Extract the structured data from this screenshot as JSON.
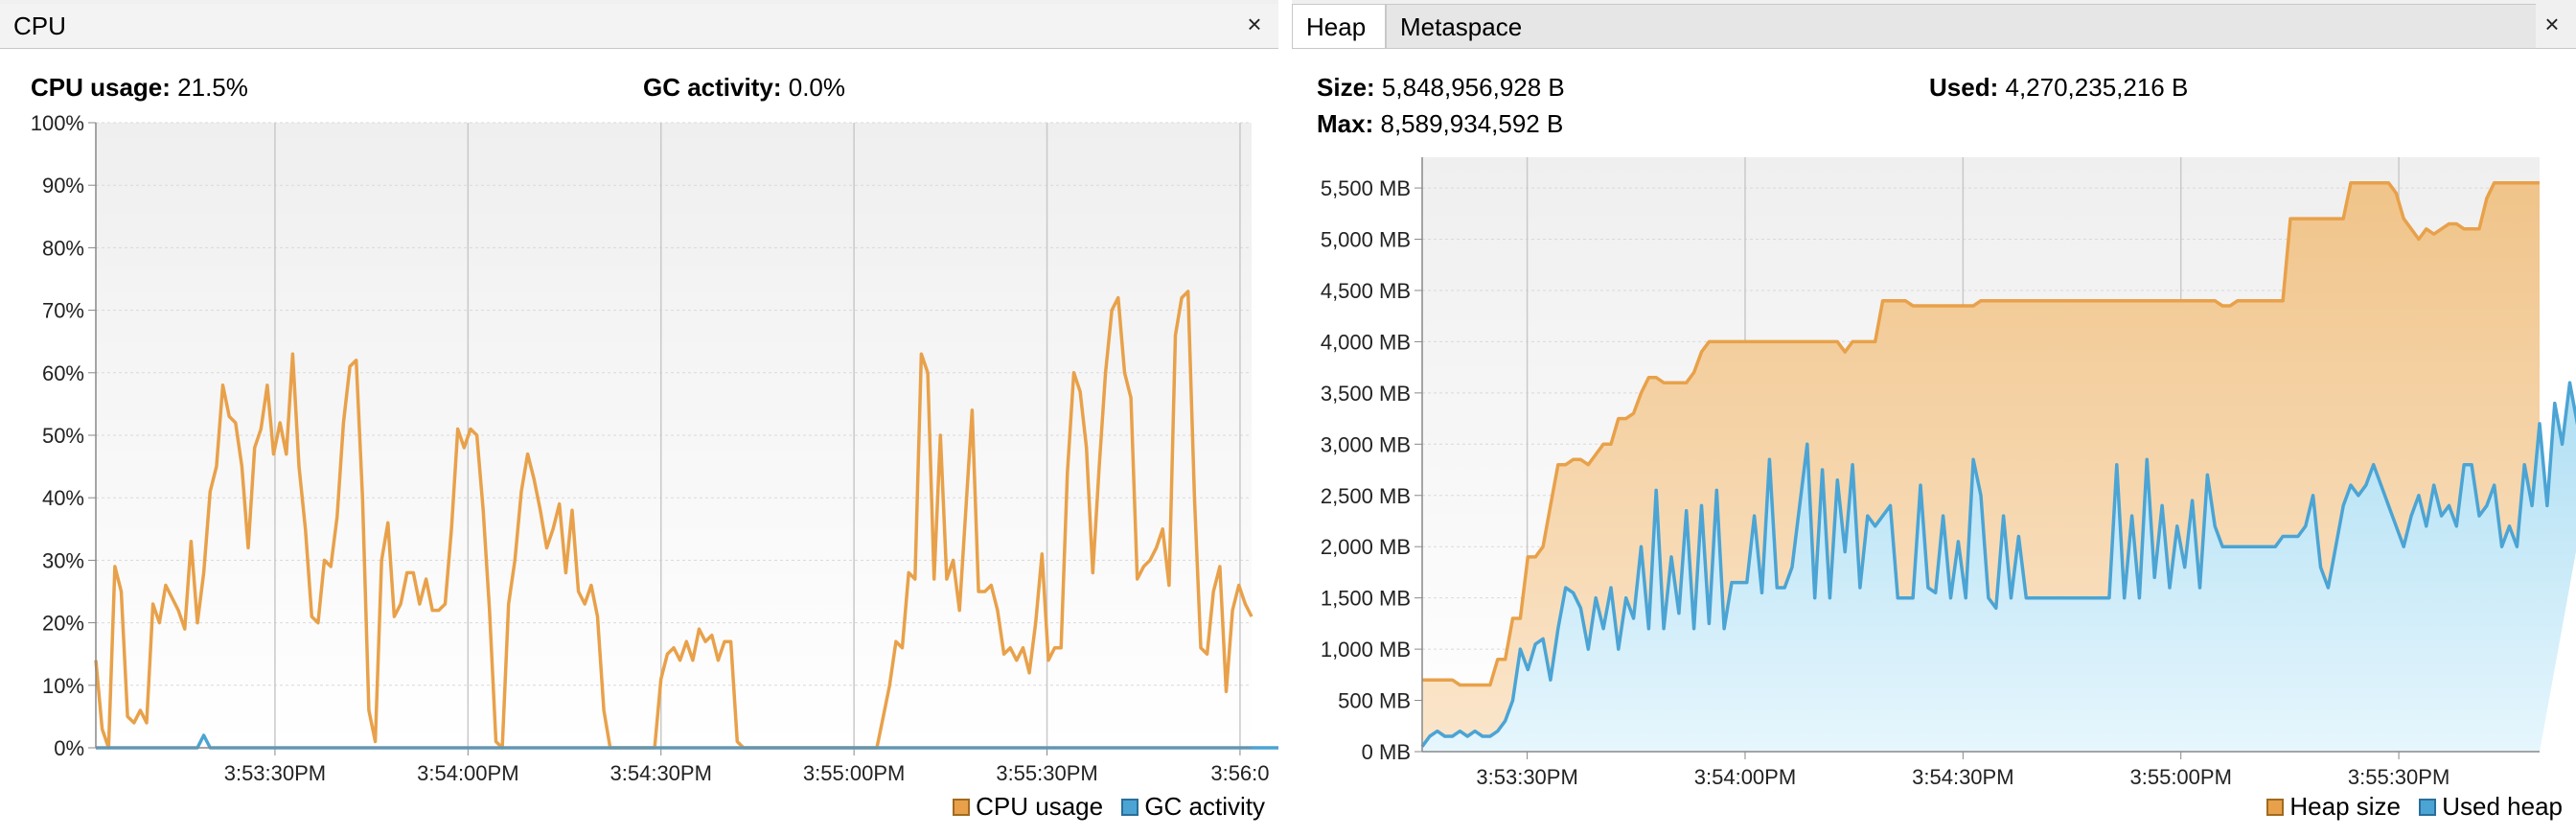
{
  "cpu_panel": {
    "tab_label": "CPU",
    "close_glyph": "×",
    "cpu_usage": {
      "label": "CPU usage:",
      "value": "21.5%"
    },
    "gc_activity": {
      "label": "GC activity:",
      "value": "0.0%"
    },
    "legend": [
      {
        "label": "CPU usage",
        "color": "#e8a14a"
      },
      {
        "label": "GC activity",
        "color": "#4ba4d4"
      }
    ]
  },
  "memory_panel": {
    "tabs": [
      "Heap",
      "Metaspace"
    ],
    "close_glyph": "×",
    "size": {
      "label": "Size:",
      "value": "5,848,956,928 B"
    },
    "used": {
      "label": "Used:",
      "value": "4,270,235,216 B"
    },
    "max": {
      "label": "Max:",
      "value": "8,589,934,592 B"
    },
    "legend": [
      {
        "label": "Heap size",
        "color": "#e8a14a"
      },
      {
        "label": "Used heap",
        "color": "#4ba4d4"
      }
    ]
  },
  "chart_data": [
    {
      "type": "line",
      "series_colors": [
        "#e8a14a",
        "#4ba4d4"
      ],
      "ylim": [
        0,
        100
      ],
      "y_ticks": [
        0,
        10,
        20,
        30,
        40,
        50,
        60,
        70,
        80,
        90,
        100
      ],
      "y_tick_labels": [
        "0%",
        "10%",
        "20%",
        "30%",
        "40%",
        "50%",
        "60%",
        "70%",
        "80%",
        "90%",
        "100%"
      ],
      "x_tick_labels": [
        "3:53:30PM",
        "3:54:00PM",
        "3:54:30PM",
        "3:55:00PM",
        "3:55:30PM",
        "3:56:0"
      ],
      "grid": true,
      "legend_position": "bottom-right",
      "series": [
        {
          "name": "CPU usage",
          "values": [
            14,
            3,
            0,
            29,
            25,
            5,
            4,
            6,
            4,
            23,
            20,
            26,
            24,
            22,
            19,
            33,
            20,
            28,
            41,
            45,
            58,
            53,
            52,
            45,
            32,
            48,
            51,
            58,
            47,
            52,
            47,
            63,
            45,
            35,
            21,
            20,
            30,
            29,
            37,
            52,
            61,
            62,
            40,
            6,
            1,
            30,
            36,
            21,
            23,
            28,
            28,
            23,
            27,
            22,
            22,
            23,
            35,
            51,
            48,
            51,
            50,
            38,
            22,
            1,
            0,
            23,
            30,
            41,
            47,
            43,
            38,
            32,
            35,
            39,
            28,
            38,
            25,
            23,
            26,
            21,
            6,
            0,
            0,
            0,
            0,
            0,
            0,
            0,
            0,
            11,
            15,
            16,
            14,
            17,
            14,
            19,
            17,
            18,
            14,
            17,
            17,
            1,
            0,
            0,
            0,
            0,
            0,
            0,
            0,
            0,
            0,
            0,
            0,
            0,
            0,
            0,
            0,
            0,
            0,
            0,
            0,
            0,
            0,
            0,
            5,
            10,
            17,
            16,
            28,
            27,
            63,
            60,
            27,
            50,
            27,
            30,
            22,
            38,
            54,
            25,
            25,
            26,
            22,
            15,
            16,
            14,
            16,
            12,
            20,
            31,
            14,
            16,
            16,
            44,
            60,
            57,
            48,
            28,
            45,
            60,
            70,
            72,
            60,
            56,
            27,
            29,
            30,
            32,
            35,
            26,
            66,
            72,
            73,
            40,
            16,
            15,
            25,
            29,
            9,
            22,
            26,
            23,
            21
          ]
        },
        {
          "name": "GC activity",
          "values": [
            0,
            0,
            0,
            0,
            0,
            0,
            0,
            0,
            0,
            0,
            0,
            0,
            0,
            0,
            0,
            0,
            0,
            2,
            0,
            0,
            0,
            0,
            0,
            0,
            0,
            0,
            0,
            0,
            0,
            0,
            0,
            0,
            0,
            0,
            0,
            0,
            0,
            0,
            0,
            0,
            0,
            0,
            0,
            0,
            0,
            0,
            0,
            0,
            0,
            0,
            0,
            0,
            0,
            0,
            0,
            0,
            0,
            0,
            0,
            0,
            0,
            0,
            0,
            0,
            0,
            0,
            0,
            0,
            0,
            0,
            0,
            0,
            0,
            0,
            0,
            0,
            0,
            0,
            0,
            0,
            0,
            0,
            0,
            0,
            0,
            0,
            0,
            0,
            0,
            0,
            0,
            0,
            0,
            0,
            0,
            0,
            0,
            0,
            0,
            0,
            0,
            0,
            0,
            0,
            0,
            0,
            0,
            0,
            0,
            0,
            0,
            0,
            0,
            0,
            0,
            0,
            0,
            0,
            0,
            0,
            0,
            0,
            0,
            0,
            0,
            0,
            0,
            0,
            0,
            0,
            0,
            0,
            0,
            0,
            0,
            0,
            0,
            0,
            0,
            0,
            0,
            0,
            0,
            0,
            0,
            0,
            0,
            0,
            0,
            0,
            0,
            0,
            0,
            0,
            0,
            0,
            0,
            0,
            0,
            0,
            0,
            0,
            0,
            0,
            0,
            0,
            0,
            0,
            0,
            0,
            0,
            0,
            0,
            0,
            0,
            0,
            0,
            0,
            0,
            0,
            0,
            0,
            0,
            0,
            0,
            0,
            0,
            0,
            0,
            0,
            0,
            0,
            0
          ]
        }
      ]
    },
    {
      "type": "area",
      "series_colors": [
        "#e8a14a",
        "#4ba4d4"
      ],
      "ylim": [
        0,
        5800
      ],
      "y_ticks": [
        0,
        500,
        1000,
        1500,
        2000,
        2500,
        3000,
        3500,
        4000,
        4500,
        5000,
        5500
      ],
      "y_tick_labels": [
        "0 MB",
        "500 MB",
        "1,000 MB",
        "1,500 MB",
        "2,000 MB",
        "2,500 MB",
        "3,000 MB",
        "3,500 MB",
        "4,000 MB",
        "4,500 MB",
        "5,000 MB",
        "5,500 MB"
      ],
      "x_tick_labels": [
        "3:53:30PM",
        "3:54:00PM",
        "3:54:30PM",
        "3:55:00PM",
        "3:55:30PM",
        "3:56:0"
      ],
      "grid": true,
      "legend_position": "bottom-right",
      "series": [
        {
          "name": "Heap size",
          "values": [
            700,
            700,
            700,
            700,
            700,
            650,
            650,
            650,
            650,
            650,
            900,
            900,
            1300,
            1300,
            1900,
            1900,
            2000,
            2400,
            2800,
            2800,
            2850,
            2850,
            2800,
            2900,
            3000,
            3000,
            3250,
            3250,
            3300,
            3500,
            3650,
            3650,
            3600,
            3600,
            3600,
            3600,
            3700,
            3900,
            4000,
            4000,
            4000,
            4000,
            4000,
            4000,
            4000,
            4000,
            4000,
            4000,
            4000,
            4000,
            4000,
            4000,
            4000,
            4000,
            4000,
            4000,
            3900,
            4000,
            4000,
            4000,
            4000,
            4400,
            4400,
            4400,
            4400,
            4350,
            4350,
            4350,
            4350,
            4350,
            4350,
            4350,
            4350,
            4350,
            4400,
            4400,
            4400,
            4400,
            4400,
            4400,
            4400,
            4400,
            4400,
            4400,
            4400,
            4400,
            4400,
            4400,
            4400,
            4400,
            4400,
            4400,
            4400,
            4400,
            4400,
            4400,
            4400,
            4400,
            4400,
            4400,
            4400,
            4400,
            4400,
            4400,
            4400,
            4400,
            4350,
            4350,
            4400,
            4400,
            4400,
            4400,
            4400,
            4400,
            4400,
            5200,
            5200,
            5200,
            5200,
            5200,
            5200,
            5200,
            5200,
            5550,
            5550,
            5550,
            5550,
            5550,
            5550,
            5450,
            5200,
            5100,
            5000,
            5100,
            5050,
            5100,
            5150,
            5150,
            5100,
            5100,
            5100,
            5400,
            5550,
            5550,
            5550,
            5550,
            5550,
            5550,
            5550
          ]
        },
        {
          "name": "Used heap",
          "values": [
            50,
            150,
            200,
            150,
            150,
            200,
            150,
            200,
            150,
            150,
            200,
            300,
            500,
            1000,
            800,
            1050,
            1100,
            700,
            1200,
            1600,
            1550,
            1400,
            1000,
            1500,
            1200,
            1600,
            1000,
            1500,
            1300,
            2000,
            1200,
            2550,
            1200,
            1900,
            1350,
            2350,
            1200,
            2400,
            1250,
            2550,
            1200,
            1650,
            1650,
            1650,
            2300,
            1550,
            2850,
            1600,
            1600,
            1800,
            2400,
            3000,
            1500,
            2750,
            1500,
            2650,
            1950,
            2800,
            1600,
            2300,
            2200,
            2300,
            2400,
            1500,
            1500,
            1500,
            2600,
            1600,
            1550,
            2300,
            1500,
            2050,
            1500,
            2850,
            2500,
            1500,
            1400,
            2300,
            1500,
            2100,
            1500,
            1500,
            1500,
            1500,
            1500,
            1500,
            1500,
            1500,
            1500,
            1500,
            1500,
            1500,
            2800,
            1500,
            2300,
            1500,
            2850,
            1700,
            2400,
            1600,
            2200,
            1800,
            2450,
            1600,
            2700,
            2200,
            2000,
            2000,
            2000,
            2000,
            2000,
            2000,
            2000,
            2000,
            2100,
            2100,
            2100,
            2200,
            2500,
            1800,
            1600,
            2000,
            2400,
            2600,
            2500,
            2600,
            2800,
            2600,
            2400,
            2200,
            2000,
            2300,
            2500,
            2200,
            2600,
            2300,
            2400,
            2200,
            2800,
            2800,
            2300,
            2400,
            2600,
            2000,
            2200,
            2000,
            2800,
            2400,
            3200,
            2400,
            3400,
            3000,
            3600,
            3200,
            4000,
            3100,
            3500,
            3900,
            4050
          ]
        }
      ]
    }
  ]
}
